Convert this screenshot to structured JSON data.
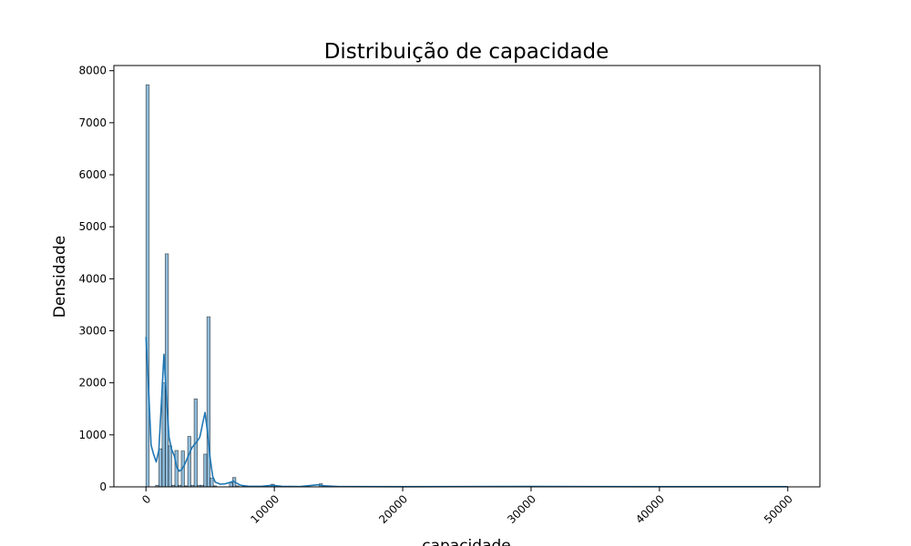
{
  "chart_data": {
    "type": "bar",
    "title": "Distribuição de capacidade",
    "xlabel": "capacidade",
    "ylabel": "Densidade",
    "xlim": [
      -2500,
      52500
    ],
    "ylim": [
      0,
      8100
    ],
    "xticks": [
      0,
      10000,
      20000,
      30000,
      40000,
      50000
    ],
    "xtick_labels": [
      "0",
      "10000",
      "20000",
      "30000",
      "40000",
      "50000"
    ],
    "yticks": [
      0,
      1000,
      2000,
      3000,
      4000,
      5000,
      6000,
      7000,
      8000
    ],
    "ytick_labels": [
      "0",
      "1000",
      "2000",
      "3000",
      "4000",
      "5000",
      "6000",
      "7000",
      "8000"
    ],
    "grid": false,
    "bin_width": 250,
    "bins": [
      {
        "x": 0,
        "value": 7730
      },
      {
        "x": 250,
        "value": 0
      },
      {
        "x": 500,
        "value": 0
      },
      {
        "x": 750,
        "value": 30
      },
      {
        "x": 1000,
        "value": 730
      },
      {
        "x": 1250,
        "value": 2000
      },
      {
        "x": 1500,
        "value": 4480
      },
      {
        "x": 1750,
        "value": 790
      },
      {
        "x": 2000,
        "value": 30
      },
      {
        "x": 2250,
        "value": 700
      },
      {
        "x": 2500,
        "value": 30
      },
      {
        "x": 2750,
        "value": 690
      },
      {
        "x": 3000,
        "value": 20
      },
      {
        "x": 3250,
        "value": 970
      },
      {
        "x": 3500,
        "value": 30
      },
      {
        "x": 3750,
        "value": 1690
      },
      {
        "x": 4000,
        "value": 30
      },
      {
        "x": 4250,
        "value": 30
      },
      {
        "x": 4500,
        "value": 630
      },
      {
        "x": 4750,
        "value": 3270
      },
      {
        "x": 5000,
        "value": 170
      },
      {
        "x": 5250,
        "value": 20
      },
      {
        "x": 6500,
        "value": 80
      },
      {
        "x": 6750,
        "value": 180
      },
      {
        "x": 7000,
        "value": 20
      },
      {
        "x": 9750,
        "value": 50
      },
      {
        "x": 13500,
        "value": 60
      },
      {
        "x": 30000,
        "value": 10
      }
    ],
    "kde": {
      "x": [
        0,
        200,
        400,
        600,
        800,
        1000,
        1200,
        1400,
        1600,
        1800,
        2000,
        2200,
        2400,
        2600,
        2800,
        3000,
        3200,
        3400,
        3600,
        3800,
        4000,
        4200,
        4400,
        4600,
        4800,
        5000,
        5200,
        5400,
        5800,
        6200,
        6600,
        6800,
        7000,
        7400,
        8000,
        9000,
        9800,
        10600,
        12000,
        13400,
        13800,
        15000,
        20000,
        30000,
        40000,
        50000
      ],
      "y": [
        2880,
        1900,
        800,
        620,
        480,
        700,
        1600,
        2550,
        1700,
        950,
        720,
        600,
        380,
        300,
        340,
        420,
        540,
        650,
        760,
        820,
        880,
        960,
        1200,
        1430,
        1050,
        550,
        200,
        90,
        50,
        60,
        90,
        110,
        80,
        30,
        10,
        10,
        30,
        10,
        5,
        40,
        20,
        5,
        3,
        8,
        3,
        3
      ]
    },
    "colors": {
      "bar_fill": "#1f77b4",
      "line": "#1f77b4"
    }
  }
}
